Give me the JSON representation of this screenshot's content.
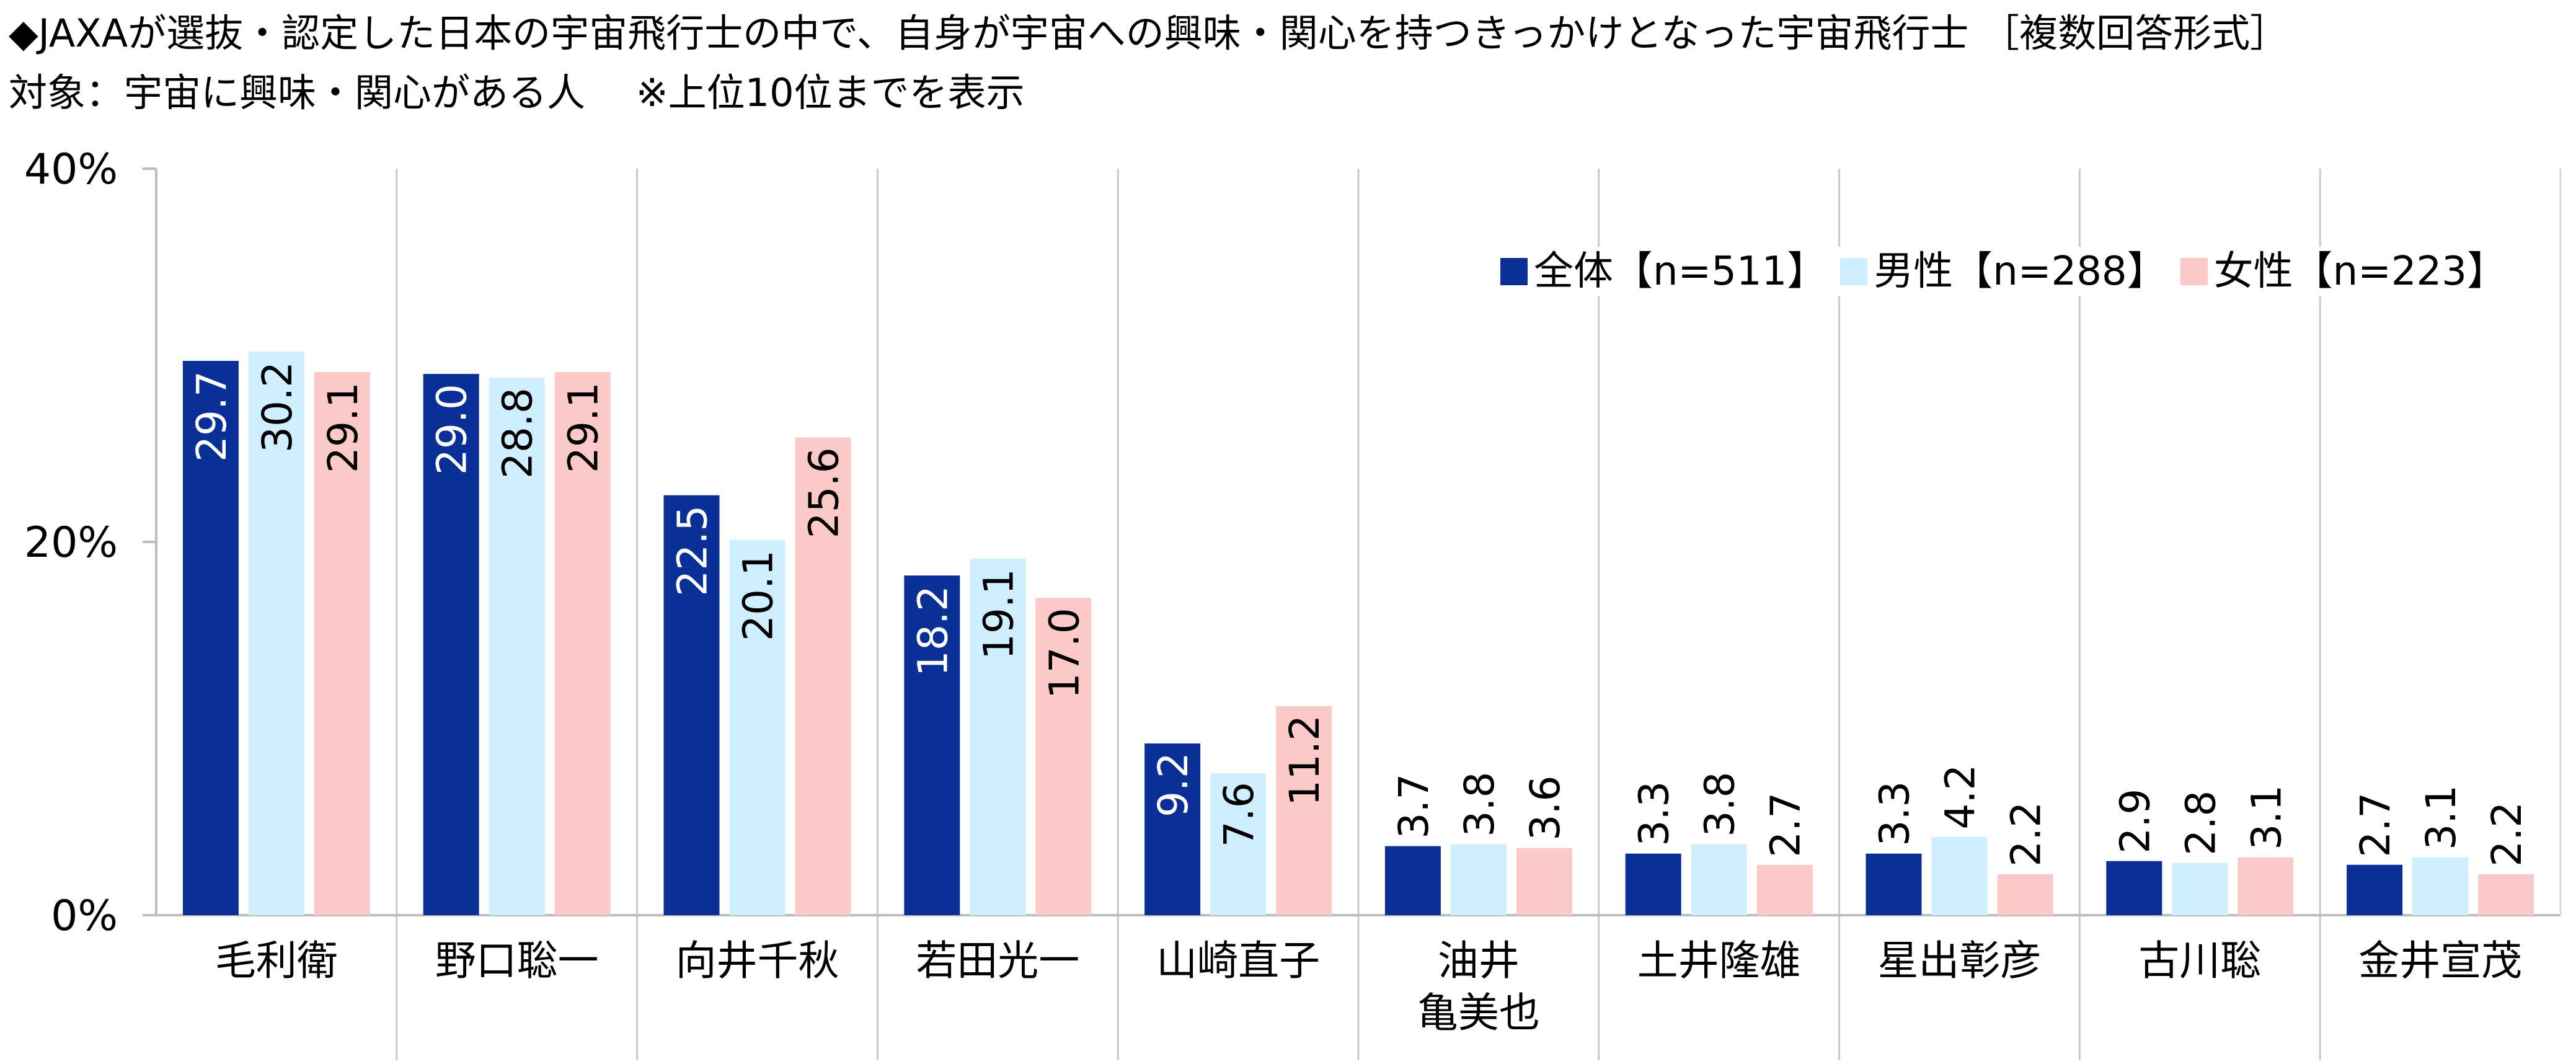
{
  "title": "◆JAXAが選抜・認定した日本の宇宙飛行士の中で、自身が宇宙への興味・関心を持つきっかけとなった宇宙飛行士 ［複数回答形式］",
  "subtitle": "対象：宇宙に興味・関心がある人　 ※上位10位までを表示",
  "chart_data": {
    "type": "bar",
    "categories": [
      "毛利衛",
      "野口聡一",
      "向井千秋",
      "若田光一",
      "山崎直子",
      "油井\n亀美也",
      "土井隆雄",
      "星出彰彦",
      "古川聡",
      "金井宣茂"
    ],
    "series": [
      {
        "name": "全体【n=511】",
        "color": "#0a2f96",
        "values": [
          29.7,
          29.0,
          22.5,
          18.2,
          9.2,
          3.7,
          3.3,
          3.3,
          2.9,
          2.7
        ]
      },
      {
        "name": "男性【n=288】",
        "color": "#cfeeff",
        "values": [
          30.2,
          28.8,
          20.1,
          19.1,
          7.6,
          3.8,
          3.8,
          4.2,
          2.8,
          3.1
        ]
      },
      {
        "name": "女性【n=223】",
        "color": "#fcc9c9",
        "values": [
          29.1,
          29.1,
          25.6,
          17.0,
          11.2,
          3.6,
          2.7,
          2.2,
          3.1,
          2.2
        ]
      }
    ],
    "ylim": [
      0,
      40
    ],
    "yticks": [
      "0%",
      "20%",
      "40%"
    ],
    "legend_position": "top-right",
    "value_label_orientation": "vertical"
  }
}
